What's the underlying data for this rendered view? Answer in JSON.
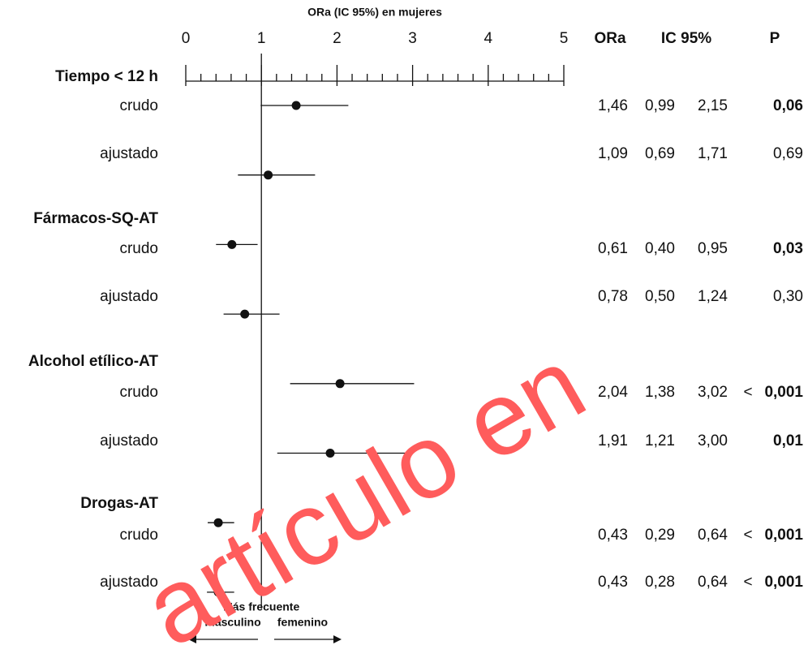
{
  "chart_data": {
    "type": "forest",
    "title": "ORa (IC 95%) en mujeres",
    "xlim": [
      0,
      5
    ],
    "xticks": [
      0,
      1,
      2,
      3,
      4,
      5
    ],
    "xminorticks": [
      0.2,
      0.4,
      0.6,
      0.8,
      1.2,
      1.4,
      1.6,
      1.8,
      2.2,
      2.4,
      2.6,
      2.8,
      3.2,
      3.4,
      3.6,
      3.8,
      4.2,
      4.4,
      4.6,
      4.8
    ],
    "reference_line": 1,
    "columns": [
      "ORa",
      "IC 95%",
      "P"
    ],
    "groups": [
      {
        "label": "Tiempo < 12 h",
        "rows": [
          {
            "label": "crudo",
            "values": [
              1.46,
              0.99,
              2.15
            ],
            "value_labels": [
              "1,46",
              "0,99",
              "2,15"
            ],
            "p": "0,06",
            "p_bold": true
          },
          {
            "label": "ajustado",
            "values": [
              1.09,
              0.69,
              1.71
            ],
            "value_labels": [
              "1,09",
              "0,69",
              "1,71"
            ],
            "p": "0,69",
            "p_bold": false
          }
        ]
      },
      {
        "label": "Fármacos-SQ-AT",
        "rows": [
          {
            "label": "crudo",
            "values": [
              0.61,
              0.4,
              0.95
            ],
            "value_labels": [
              "0,61",
              "0,40",
              "0,95"
            ],
            "p": "0,03",
            "p_bold": true
          },
          {
            "label": "ajustado",
            "values": [
              0.78,
              0.5,
              1.24
            ],
            "value_labels": [
              "0,78",
              "0,50",
              "1,24"
            ],
            "p": "0,30",
            "p_bold": false
          }
        ]
      },
      {
        "label": "Alcohol etílico-AT",
        "rows": [
          {
            "label": "crudo",
            "values": [
              2.04,
              1.38,
              3.02
            ],
            "value_labels": [
              "2,04",
              "1,38",
              "3,02"
            ],
            "p_sign": "<",
            "p": "0,001",
            "p_bold": true
          },
          {
            "label": "ajustado",
            "values": [
              1.91,
              1.21,
              3.0
            ],
            "value_labels": [
              "1,91",
              "1,21",
              "3,00"
            ],
            "p": "0,01",
            "p_bold": true
          }
        ]
      },
      {
        "label": "Drogas-AT",
        "rows": [
          {
            "label": "crudo",
            "values": [
              0.43,
              0.29,
              0.64
            ],
            "value_labels": [
              "0,43",
              "0,29",
              "0,64"
            ],
            "p_sign": "<",
            "p": "0,001",
            "p_bold": true
          },
          {
            "label": "ajustado",
            "values": [
              0.43,
              0.28,
              0.64
            ],
            "value_labels": [
              "0,43",
              "0,28",
              "0,64"
            ],
            "p_sign": "<",
            "p": "0,001",
            "p_bold": true
          }
        ]
      }
    ],
    "footer": {
      "title": "Más frecuente",
      "left": "masculino",
      "right": "femenino"
    },
    "watermark": "artículo en",
    "watermark_color": "#ff5c5c",
    "color": "#111111"
  }
}
